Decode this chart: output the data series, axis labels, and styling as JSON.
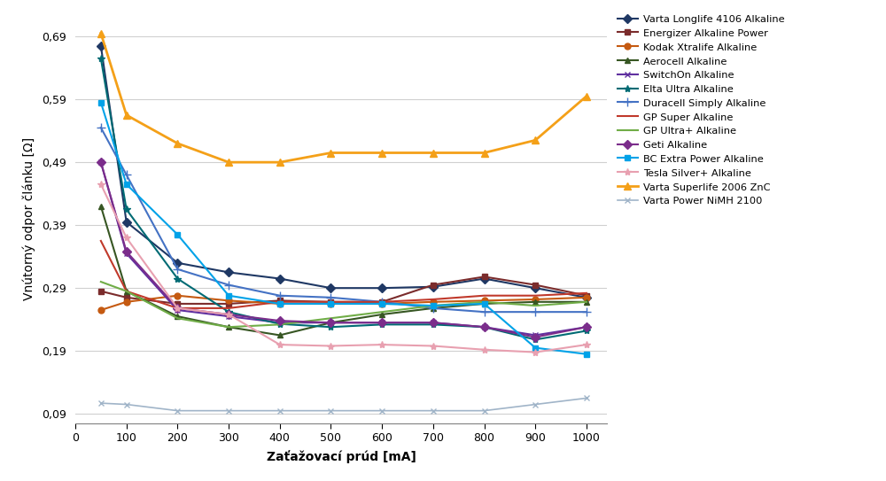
{
  "x": [
    50,
    100,
    200,
    300,
    400,
    500,
    600,
    700,
    800,
    900,
    1000
  ],
  "series": [
    {
      "name": "Varta Longlife 4106 Alkaline",
      "color": "#1f3864",
      "marker": "D",
      "markersize": 5,
      "lw": 1.5,
      "values": [
        0.675,
        0.395,
        0.33,
        0.315,
        0.305,
        0.29,
        0.29,
        0.292,
        0.305,
        0.29,
        0.275
      ]
    },
    {
      "name": "Energizer Alkaline Power",
      "color": "#7b2c2c",
      "marker": "s",
      "markersize": 5,
      "lw": 1.5,
      "values": [
        0.285,
        0.275,
        0.265,
        0.265,
        0.27,
        0.268,
        0.268,
        0.295,
        0.308,
        0.295,
        0.278
      ]
    },
    {
      "name": "Kodak Xtralife Alkaline",
      "color": "#c55a11",
      "marker": "o",
      "markersize": 5,
      "lw": 1.5,
      "values": [
        0.255,
        0.268,
        0.278,
        0.27,
        0.265,
        0.265,
        0.265,
        0.268,
        0.27,
        0.272,
        0.275
      ]
    },
    {
      "name": "Aerocell Alkaline",
      "color": "#375623",
      "marker": "^",
      "markersize": 5,
      "lw": 1.5,
      "values": [
        0.42,
        0.285,
        0.245,
        0.228,
        0.215,
        0.235,
        0.248,
        0.258,
        0.265,
        0.268,
        0.268
      ]
    },
    {
      "name": "SwitchOn Alkaline",
      "color": "#6030a0",
      "marker": "x",
      "markersize": 5,
      "lw": 1.5,
      "values": [
        0.49,
        0.345,
        0.255,
        0.245,
        0.235,
        0.235,
        0.235,
        0.235,
        0.228,
        0.215,
        0.228
      ]
    },
    {
      "name": "Elta Ultra Alkaline",
      "color": "#006b74",
      "marker": "*",
      "markersize": 6,
      "lw": 1.5,
      "values": [
        0.655,
        0.415,
        0.305,
        0.252,
        0.233,
        0.228,
        0.232,
        0.232,
        0.228,
        0.208,
        0.222
      ]
    },
    {
      "name": "Duracell Simply Alkaline",
      "color": "#4472c4",
      "marker": "+",
      "markersize": 7,
      "lw": 1.5,
      "values": [
        0.545,
        0.47,
        0.32,
        0.295,
        0.278,
        0.275,
        0.268,
        0.258,
        0.252,
        0.252,
        0.252
      ]
    },
    {
      "name": "GP Super Alkaline",
      "color": "#c0392b",
      "marker": "None",
      "markersize": 5,
      "lw": 1.5,
      "values": [
        0.365,
        0.285,
        0.258,
        0.258,
        0.268,
        0.268,
        0.268,
        0.272,
        0.278,
        0.278,
        0.282
      ]
    },
    {
      "name": "GP Ultra+ Alkaline",
      "color": "#70ad47",
      "marker": "None",
      "markersize": 5,
      "lw": 1.5,
      "values": [
        0.3,
        0.285,
        0.242,
        0.228,
        0.232,
        0.242,
        0.252,
        0.262,
        0.268,
        0.262,
        0.268
      ]
    },
    {
      "name": "Geti Alkaline",
      "color": "#7b2d8b",
      "marker": "D",
      "markersize": 5,
      "lw": 1.5,
      "values": [
        0.49,
        0.348,
        0.258,
        0.248,
        0.238,
        0.235,
        0.235,
        0.235,
        0.228,
        0.212,
        0.228
      ]
    },
    {
      "name": "BC Extra Power Alkaline",
      "color": "#00a2e8",
      "marker": "s",
      "markersize": 5,
      "lw": 1.5,
      "values": [
        0.585,
        0.455,
        0.375,
        0.278,
        0.265,
        0.265,
        0.265,
        0.262,
        0.265,
        0.195,
        0.185
      ]
    },
    {
      "name": "Tesla Silver+ Alkaline",
      "color": "#e8a0b0",
      "marker": "*",
      "markersize": 6,
      "lw": 1.5,
      "values": [
        0.455,
        0.37,
        0.258,
        0.248,
        0.2,
        0.198,
        0.2,
        0.198,
        0.192,
        0.188,
        0.2
      ]
    },
    {
      "name": "Varta Superlife 2006 ZnC",
      "color": "#f4a018",
      "marker": "^",
      "markersize": 6,
      "lw": 2.0,
      "values": [
        0.695,
        0.565,
        0.52,
        0.49,
        0.49,
        0.505,
        0.505,
        0.505,
        0.505,
        0.525,
        0.595
      ]
    },
    {
      "name": "Varta Power NiMH 2100",
      "color": "#a0b4c8",
      "marker": "x",
      "markersize": 5,
      "lw": 1.2,
      "values": [
        0.107,
        0.105,
        0.095,
        0.095,
        0.095,
        0.095,
        0.095,
        0.095,
        0.095,
        0.105,
        0.115
      ]
    }
  ],
  "xlabel": "Zaťažovací prúd [mA]",
  "ylabel": "Vnútorný odpor článku [Ω]",
  "yticks": [
    0.09,
    0.19,
    0.29,
    0.39,
    0.49,
    0.59,
    0.69
  ],
  "yticklabels": [
    "0,09",
    "0,19",
    "0,29",
    "0,39",
    "0,49",
    "0,59",
    "0,69"
  ],
  "xticks": [
    0,
    100,
    200,
    300,
    400,
    500,
    600,
    700,
    800,
    900,
    1000
  ],
  "ylim": [
    0.075,
    0.725
  ],
  "xlim": [
    0,
    1040
  ]
}
